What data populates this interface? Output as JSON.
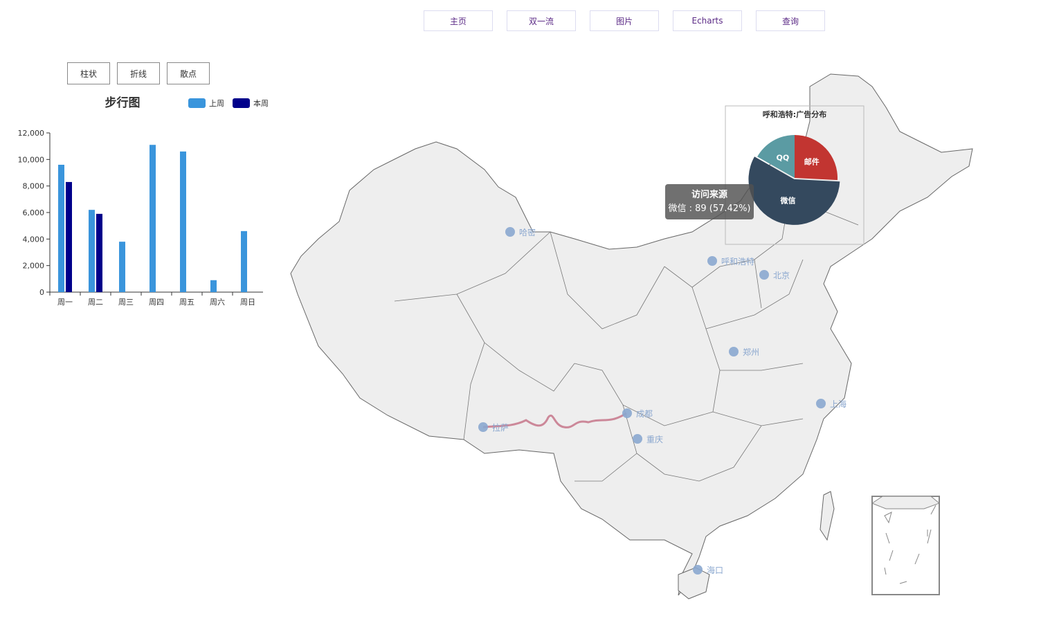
{
  "nav": {
    "items": [
      "主页",
      "双一流",
      "图片",
      "Echarts",
      "查询"
    ]
  },
  "chart_controls": {
    "buttons": [
      "柱状",
      "折线",
      "散点"
    ]
  },
  "chart_data": {
    "type": "bar",
    "title": "步行图",
    "categories": [
      "周一",
      "周二",
      "周三",
      "周四",
      "周五",
      "周六",
      "周日"
    ],
    "series": [
      {
        "name": "上周",
        "color": "#3a95dc",
        "values": [
          9600,
          6200,
          3800,
          11100,
          10600,
          900,
          4600
        ]
      },
      {
        "name": "本周",
        "color": "#00008b",
        "values": [
          8300,
          5900,
          null,
          null,
          null,
          null,
          null
        ]
      }
    ],
    "y_ticks": [
      "0",
      "2,000",
      "4,000",
      "6,000",
      "8,000",
      "10,000",
      "12,000"
    ],
    "ylim": [
      0,
      12000
    ],
    "legend_position": "top-right",
    "grid": false
  },
  "map": {
    "cities": [
      "哈密",
      "呼和浩特",
      "北京",
      "郑州",
      "上海",
      "成都",
      "拉萨",
      "重庆",
      "海口"
    ],
    "route": {
      "from": "拉萨",
      "to": "成都",
      "color": "#cc8899"
    },
    "pie": {
      "title": "呼和浩特:广告分布",
      "slices": [
        {
          "name": "微信",
          "value": 89,
          "color": "#34495e"
        },
        {
          "name": "邮件",
          "value": 40,
          "color": "#c23531"
        },
        {
          "name": "QQ",
          "value": 26,
          "color": "#5b9ba3"
        }
      ]
    },
    "tooltip": {
      "title": "访问来源",
      "text": "微信 : 89 (57.42%)"
    }
  }
}
